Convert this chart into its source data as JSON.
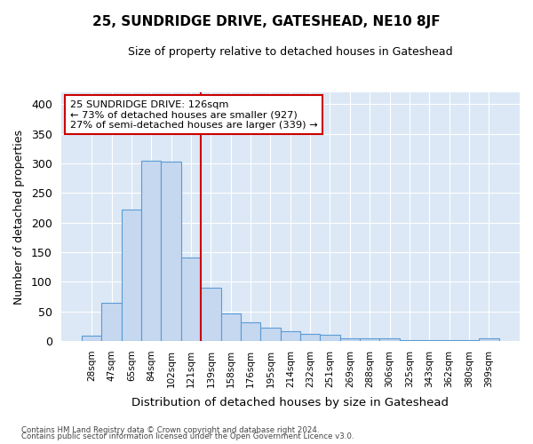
{
  "title": "25, SUNDRIDGE DRIVE, GATESHEAD, NE10 8JF",
  "subtitle": "Size of property relative to detached houses in Gateshead",
  "xlabel": "Distribution of detached houses by size in Gateshead",
  "ylabel": "Number of detached properties",
  "bar_color": "#c5d8f0",
  "bar_edge_color": "#5b9bd5",
  "plot_bg_color": "#dce8f5",
  "fig_bg_color": "#ffffff",
  "grid_color": "#ffffff",
  "annotation_box_edgecolor": "#cc0000",
  "vline_color": "#cc0000",
  "categories": [
    "28sqm",
    "47sqm",
    "65sqm",
    "84sqm",
    "102sqm",
    "121sqm",
    "139sqm",
    "158sqm",
    "176sqm",
    "195sqm",
    "214sqm",
    "232sqm",
    "251sqm",
    "269sqm",
    "288sqm",
    "306sqm",
    "325sqm",
    "343sqm",
    "362sqm",
    "380sqm",
    "399sqm"
  ],
  "values": [
    9,
    64,
    222,
    305,
    303,
    141,
    90,
    47,
    31,
    22,
    16,
    12,
    11,
    4,
    4,
    4,
    2,
    2,
    1,
    1,
    4
  ],
  "annotation_line1": "25 SUNDRIDGE DRIVE: 126sqm",
  "annotation_line2": "← 73% of detached houses are smaller (927)",
  "annotation_line3": "27% of semi-detached houses are larger (339) →",
  "vline_position": 5.5,
  "ylim": [
    0,
    420
  ],
  "yticks": [
    0,
    50,
    100,
    150,
    200,
    250,
    300,
    350,
    400
  ],
  "footer1": "Contains HM Land Registry data © Crown copyright and database right 2024.",
  "footer2": "Contains public sector information licensed under the Open Government Licence v3.0."
}
